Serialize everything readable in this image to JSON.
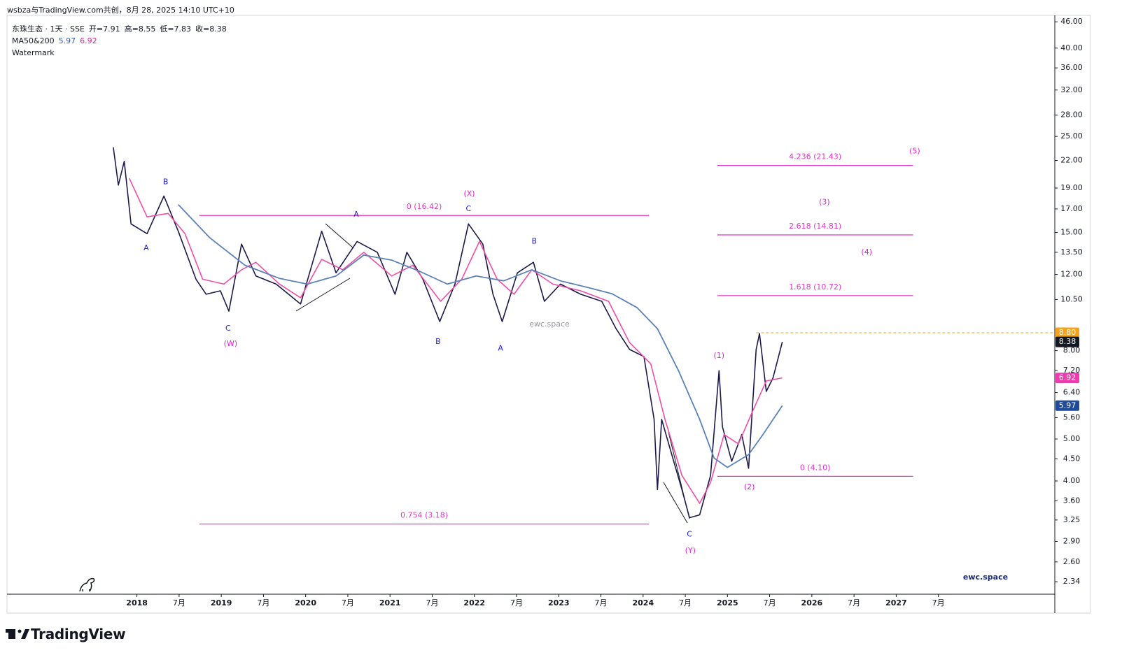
{
  "header": "wsbza与TradingView.com共创，8月 28, 2025 14:10 UTC+10",
  "chart_data": {
    "type": "line",
    "title": "东珠生态 · 1天 · SSE",
    "ohlc": [
      "开=7.91",
      "高=8.55",
      "低=7.83",
      "收=8.38"
    ],
    "indicator": {
      "label": "MA50&200",
      "values": [
        5.97,
        6.92
      ],
      "colors": [
        "#2e5cb8",
        "#e91e8c"
      ]
    },
    "watermark_label": "Watermark",
    "watermark": "ewc.space",
    "brand": "ewc.space",
    "log_scale": true,
    "xlim": [
      2016.46,
      2028.88
    ],
    "ylim": [
      2.19,
      47.6
    ],
    "xticks": [
      2018,
      {
        "value": 2018.5,
        "label": "7月"
      },
      2019,
      {
        "value": 2019.5,
        "label": "7月"
      },
      2020,
      {
        "value": 2020.5,
        "label": "7月"
      },
      2021,
      {
        "value": 2021.5,
        "label": "7月"
      },
      2022,
      {
        "value": 2022.5,
        "label": "7月"
      },
      2023,
      {
        "value": 2023.5,
        "label": "7月"
      },
      2024,
      {
        "value": 2024.5,
        "label": "7月"
      },
      2025,
      {
        "value": 2025.5,
        "label": "7月"
      },
      2026,
      {
        "value": 2026.5,
        "label": "7月"
      },
      2027,
      {
        "value": 2027.5,
        "label": "7月"
      }
    ],
    "yticks": [
      {
        "value": 46,
        "label": "46.00"
      },
      {
        "value": 40,
        "label": "40.00"
      },
      {
        "value": 36,
        "label": "36.00"
      },
      {
        "value": 32,
        "label": "32.00"
      },
      {
        "value": 28,
        "label": "28.00"
      },
      {
        "value": 25,
        "label": "25.00"
      },
      {
        "value": 22,
        "label": "22.00"
      },
      {
        "value": 19,
        "label": "19.00"
      },
      {
        "value": 17,
        "label": "17.00"
      },
      {
        "value": 15,
        "label": "15.00"
      },
      {
        "value": 13.5,
        "label": "13.50"
      },
      {
        "value": 12,
        "label": "12.00"
      },
      {
        "value": 10.5,
        "label": "10.50"
      },
      {
        "value": 8,
        "label": "8.00"
      },
      {
        "value": 7.2,
        "label": "7.20"
      },
      {
        "value": 6.4,
        "label": "6.40"
      },
      {
        "value": 5.6,
        "label": "5.60"
      },
      {
        "value": 5,
        "label": "5.00"
      },
      {
        "value": 4.5,
        "label": "4.50"
      },
      {
        "value": 4,
        "label": "4.00"
      },
      {
        "value": 3.6,
        "label": "3.60"
      },
      {
        "value": 3.25,
        "label": "3.25"
      },
      {
        "value": 2.9,
        "label": "2.90"
      },
      {
        "value": 2.6,
        "label": "2.60"
      },
      {
        "value": 2.34,
        "label": "2.34"
      }
    ],
    "series": [
      {
        "color": "#1c1a4a",
        "width": 1.6,
        "x": [
          2017.72,
          2017.78,
          2017.85,
          2017.93,
          2018.12,
          2018.32,
          2018.49,
          2018.7,
          2018.82,
          2018.99,
          2019.09,
          2019.24,
          2019.41,
          2019.65,
          2019.94,
          2020.19,
          2020.36,
          2020.61,
          2020.85,
          2021.06,
          2021.2,
          2021.39,
          2021.59,
          2021.77,
          2021.93,
          2022.1,
          2022.22,
          2022.33,
          2022.51,
          2022.7,
          2022.83,
          2023.02,
          2023.26,
          2023.51,
          2023.68,
          2023.84,
          2024.01,
          2024.13,
          2024.17,
          2024.22,
          2024.34,
          2024.46,
          2024.55,
          2024.67,
          2024.8,
          2024.9,
          2024.94,
          2025.05,
          2025.17,
          2025.25,
          2025.34,
          2025.38,
          2025.46,
          2025.54,
          2025.65
        ],
        "values": [
          23.6,
          19.3,
          21.9,
          15.7,
          14.9,
          18.2,
          15.1,
          11.7,
          10.8,
          11.0,
          9.87,
          14.1,
          11.9,
          11.4,
          10.25,
          15.1,
          12.1,
          14.3,
          13.5,
          10.8,
          13.5,
          11.7,
          9.34,
          11.4,
          15.7,
          14.1,
          10.8,
          9.34,
          12.1,
          12.8,
          10.4,
          11.4,
          10.8,
          10.4,
          8.99,
          8.05,
          7.75,
          5.55,
          3.82,
          5.55,
          4.6,
          3.82,
          3.29,
          3.34,
          4.12,
          7.19,
          5.34,
          4.44,
          5.12,
          4.28,
          8.05,
          8.76,
          6.44,
          6.92,
          8.38
        ]
      },
      {
        "color": "#ef4fa6",
        "width": 1.6,
        "x": [
          2017.91,
          2018.12,
          2018.37,
          2018.57,
          2018.78,
          2019.03,
          2019.24,
          2019.41,
          2019.69,
          2019.94,
          2020.19,
          2020.44,
          2020.69,
          2021.02,
          2021.27,
          2021.6,
          2021.85,
          2022.06,
          2022.27,
          2022.47,
          2022.68,
          2022.93,
          2023.26,
          2023.59,
          2023.84,
          2024.09,
          2024.26,
          2024.46,
          2024.67,
          2024.8,
          2024.96,
          2025.13,
          2025.29,
          2025.46,
          2025.65
        ],
        "values": [
          20.0,
          16.3,
          16.6,
          14.9,
          11.7,
          11.4,
          12.3,
          12.8,
          11.4,
          10.6,
          13.0,
          12.3,
          13.5,
          11.9,
          12.6,
          10.4,
          11.7,
          14.3,
          11.7,
          10.8,
          12.3,
          11.4,
          11.0,
          10.4,
          8.35,
          7.46,
          5.55,
          4.12,
          3.55,
          3.97,
          5.12,
          4.87,
          5.75,
          6.81,
          6.92
        ]
      },
      {
        "color": "#5b82b8",
        "width": 1.8,
        "x": [
          2018.49,
          2018.86,
          2019.28,
          2019.69,
          2020.02,
          2020.36,
          2020.69,
          2021.02,
          2021.35,
          2021.68,
          2022.02,
          2022.35,
          2022.68,
          2023.02,
          2023.34,
          2023.63,
          2023.93,
          2024.17,
          2024.42,
          2024.67,
          2024.84,
          2025.0,
          2025.25,
          2025.42,
          2025.65
        ],
        "values": [
          17.4,
          14.6,
          12.6,
          11.75,
          11.4,
          11.9,
          13.3,
          12.95,
          12.2,
          11.4,
          11.9,
          11.6,
          12.3,
          11.6,
          11.2,
          10.83,
          10.05,
          8.99,
          7.19,
          5.55,
          4.52,
          4.3,
          4.6,
          5.12,
          5.97
        ]
      }
    ],
    "fib_levels": [
      {
        "label": "0 (16.42)",
        "value": 16.42,
        "x": [
          2018.74,
          2024.07
        ]
      },
      {
        "label": "0.754 (3.18)",
        "value": 3.18,
        "x": [
          2018.74,
          2024.07
        ]
      },
      {
        "label": "4.236 (21.43)",
        "value": 21.43,
        "x": [
          2024.88,
          2027.2
        ]
      },
      {
        "label": "2.618 (14.81)",
        "value": 14.81,
        "x": [
          2024.88,
          2027.2
        ]
      },
      {
        "label": "1.618 (10.72)",
        "value": 10.72,
        "x": [
          2024.88,
          2027.2
        ]
      },
      {
        "label": "0 (4.10)",
        "value": 4.1,
        "x": [
          2024.88,
          2027.2
        ]
      }
    ],
    "fib_color": "#e535c8",
    "wave_labels": [
      {
        "text": "A",
        "x": 2018.11,
        "y": 13.8,
        "color": "#1f1fd6"
      },
      {
        "text": "B",
        "x": 2018.34,
        "y": 19.6,
        "color": "#1f1fd6"
      },
      {
        "text": "C",
        "x": 2019.08,
        "y": 8.99,
        "color": "#1f1fd6"
      },
      {
        "text": "(W)",
        "x": 2019.11,
        "y": 8.29,
        "color": "#e020d0"
      },
      {
        "text": "A",
        "x": 2020.6,
        "y": 16.5,
        "color": "#1f1fd6"
      },
      {
        "text": "(X)",
        "x": 2021.94,
        "y": 18.4,
        "color": "#e020d0"
      },
      {
        "text": "C",
        "x": 2021.93,
        "y": 17.0,
        "color": "#1f1fd6"
      },
      {
        "text": "B",
        "x": 2021.57,
        "y": 8.38,
        "color": "#1f1fd6"
      },
      {
        "text": "A",
        "x": 2022.31,
        "y": 8.1,
        "color": "#1f1fd6"
      },
      {
        "text": "B",
        "x": 2022.71,
        "y": 14.3,
        "color": "#1f1fd6"
      },
      {
        "text": "C",
        "x": 2024.55,
        "y": 3.01,
        "color": "#1f1fd6"
      },
      {
        "text": "(Y)",
        "x": 2024.56,
        "y": 2.76,
        "color": "#e020d0"
      },
      {
        "text": "(1)",
        "x": 2024.9,
        "y": 7.78,
        "color": "#e020d0"
      },
      {
        "text": "(2)",
        "x": 2025.26,
        "y": 3.87,
        "color": "#e020d0"
      },
      {
        "text": "(3)",
        "x": 2026.15,
        "y": 17.6,
        "color": "#e020d0"
      },
      {
        "text": "(4)",
        "x": 2026.65,
        "y": 13.5,
        "color": "#e020d0"
      },
      {
        "text": "(5)",
        "x": 2027.22,
        "y": 23.1,
        "color": "#e020d0"
      }
    ],
    "price_labels": [
      {
        "value": 8.8,
        "label": "8.80",
        "color": "#f7a21b",
        "dashed_from": 2025.34
      },
      {
        "value": 8.38,
        "label": "8.38",
        "color": "#131722"
      },
      {
        "value": 6.92,
        "label": "6.92",
        "color": "#f23ab0"
      },
      {
        "value": 5.97,
        "label": "5.97",
        "color": "#1e4c9a"
      }
    ]
  },
  "footer": "TradingView"
}
